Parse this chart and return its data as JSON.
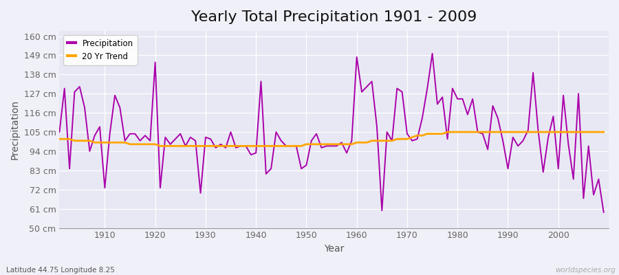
{
  "title": "Yearly Total Precipitation 1901 - 2009",
  "xlabel": "Year",
  "ylabel": "Precipitation",
  "subtitle": "Latitude 44.75 Longitude 8.25",
  "watermark": "worldspecies.org",
  "years": [
    1901,
    1902,
    1903,
    1904,
    1905,
    1906,
    1907,
    1908,
    1909,
    1910,
    1911,
    1912,
    1913,
    1914,
    1915,
    1916,
    1917,
    1918,
    1919,
    1920,
    1921,
    1922,
    1923,
    1924,
    1925,
    1926,
    1927,
    1928,
    1929,
    1930,
    1931,
    1932,
    1933,
    1934,
    1935,
    1936,
    1937,
    1938,
    1939,
    1940,
    1941,
    1942,
    1943,
    1944,
    1945,
    1946,
    1947,
    1948,
    1949,
    1950,
    1951,
    1952,
    1953,
    1954,
    1955,
    1956,
    1957,
    1958,
    1959,
    1960,
    1961,
    1962,
    1963,
    1964,
    1965,
    1966,
    1967,
    1968,
    1969,
    1970,
    1971,
    1972,
    1973,
    1974,
    1975,
    1976,
    1977,
    1978,
    1979,
    1980,
    1981,
    1982,
    1983,
    1984,
    1985,
    1986,
    1987,
    1988,
    1989,
    1990,
    1991,
    1992,
    1993,
    1994,
    1995,
    1996,
    1997,
    1998,
    1999,
    2000,
    2001,
    2002,
    2003,
    2004,
    2005,
    2006,
    2007,
    2008,
    2009
  ],
  "precip": [
    105,
    130,
    84,
    128,
    131,
    119,
    94,
    103,
    108,
    73,
    104,
    126,
    119,
    100,
    104,
    104,
    100,
    103,
    100,
    145,
    73,
    102,
    98,
    101,
    104,
    97,
    102,
    100,
    70,
    102,
    101,
    96,
    98,
    96,
    105,
    96,
    97,
    97,
    92,
    93,
    134,
    81,
    84,
    105,
    100,
    97,
    97,
    97,
    84,
    86,
    100,
    104,
    96,
    97,
    97,
    97,
    99,
    93,
    100,
    148,
    128,
    131,
    134,
    108,
    60,
    105,
    100,
    130,
    128,
    104,
    100,
    101,
    113,
    130,
    150,
    121,
    125,
    101,
    130,
    124,
    124,
    115,
    124,
    105,
    104,
    95,
    120,
    113,
    100,
    84,
    102,
    97,
    100,
    106,
    139,
    106,
    82,
    102,
    114,
    84,
    126,
    98,
    78,
    127,
    67,
    97,
    69,
    78,
    59
  ],
  "trend": [
    101,
    101,
    101,
    100,
    100,
    100,
    100,
    99,
    99,
    99,
    99,
    99,
    99,
    99,
    98,
    98,
    98,
    98,
    98,
    98,
    97,
    97,
    97,
    97,
    97,
    97,
    97,
    97,
    97,
    97,
    97,
    97,
    97,
    97,
    97,
    97,
    97,
    97,
    97,
    97,
    97,
    97,
    97,
    97,
    97,
    97,
    97,
    97,
    97,
    98,
    98,
    98,
    98,
    98,
    98,
    98,
    98,
    98,
    98,
    99,
    99,
    99,
    100,
    100,
    100,
    100,
    100,
    101,
    101,
    101,
    102,
    103,
    103,
    104,
    104,
    104,
    104,
    105,
    105,
    105,
    105,
    105,
    105,
    105,
    105,
    105,
    105,
    105,
    105,
    105,
    105,
    105,
    105,
    105,
    105,
    105,
    105,
    105,
    105,
    105,
    105,
    105,
    105,
    105,
    105,
    105,
    105,
    105,
    105
  ],
  "precip_color": "#aa00aa",
  "trend_color": "#FFA500",
  "bg_color": "#f0f0f8",
  "plot_bg_color": "#e8e8f4",
  "ylim": [
    50,
    163
  ],
  "yticks": [
    50,
    61,
    72,
    83,
    94,
    105,
    116,
    127,
    138,
    149,
    160
  ],
  "ytick_labels": [
    "50 cm",
    "61 cm",
    "72 cm",
    "83 cm",
    "94 cm",
    "105 cm",
    "116 cm",
    "127 cm",
    "138 cm",
    "149 cm",
    "160 cm"
  ],
  "xticks": [
    1910,
    1920,
    1930,
    1940,
    1950,
    1960,
    1970,
    1980,
    1990,
    2000
  ],
  "grid_color": "#ffffff",
  "linewidth_precip": 1.4,
  "linewidth_trend": 2.0,
  "title_fontsize": 16,
  "axis_fontsize": 10,
  "tick_fontsize": 9
}
